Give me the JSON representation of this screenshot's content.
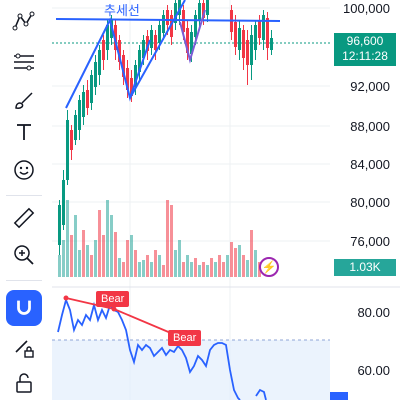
{
  "toolbar": {
    "items": [
      {
        "name": "pattern-tool-icon"
      },
      {
        "name": "fib-retracement-tool-icon"
      },
      {
        "name": "brush-tool-icon"
      },
      {
        "name": "text-tool-icon"
      },
      {
        "name": "emoji-tool-icon"
      },
      {
        "name": "ruler-tool-icon"
      },
      {
        "name": "zoom-in-tool-icon"
      },
      {
        "name": "magnet-tool-icon"
      },
      {
        "name": "lock-drawing-icon"
      },
      {
        "name": "unlock-icon"
      }
    ]
  },
  "chart": {
    "trendline_label": "추세선",
    "price_axis": [
      "100,000",
      "96,600",
      "92,000",
      "88,000",
      "84,000",
      "80,000",
      "76,000"
    ],
    "price_badge": {
      "value": "96,600",
      "time": "12:11:28"
    },
    "volume_badge": "1.03K",
    "colors": {
      "up": "#089981",
      "down": "#f23645",
      "trendline": "#2962ff",
      "pattern": "#7b5cd6"
    }
  },
  "indicator": {
    "axis": [
      "80.00",
      "60.00"
    ],
    "divergence_labels": [
      "Bear",
      "Bear"
    ]
  }
}
